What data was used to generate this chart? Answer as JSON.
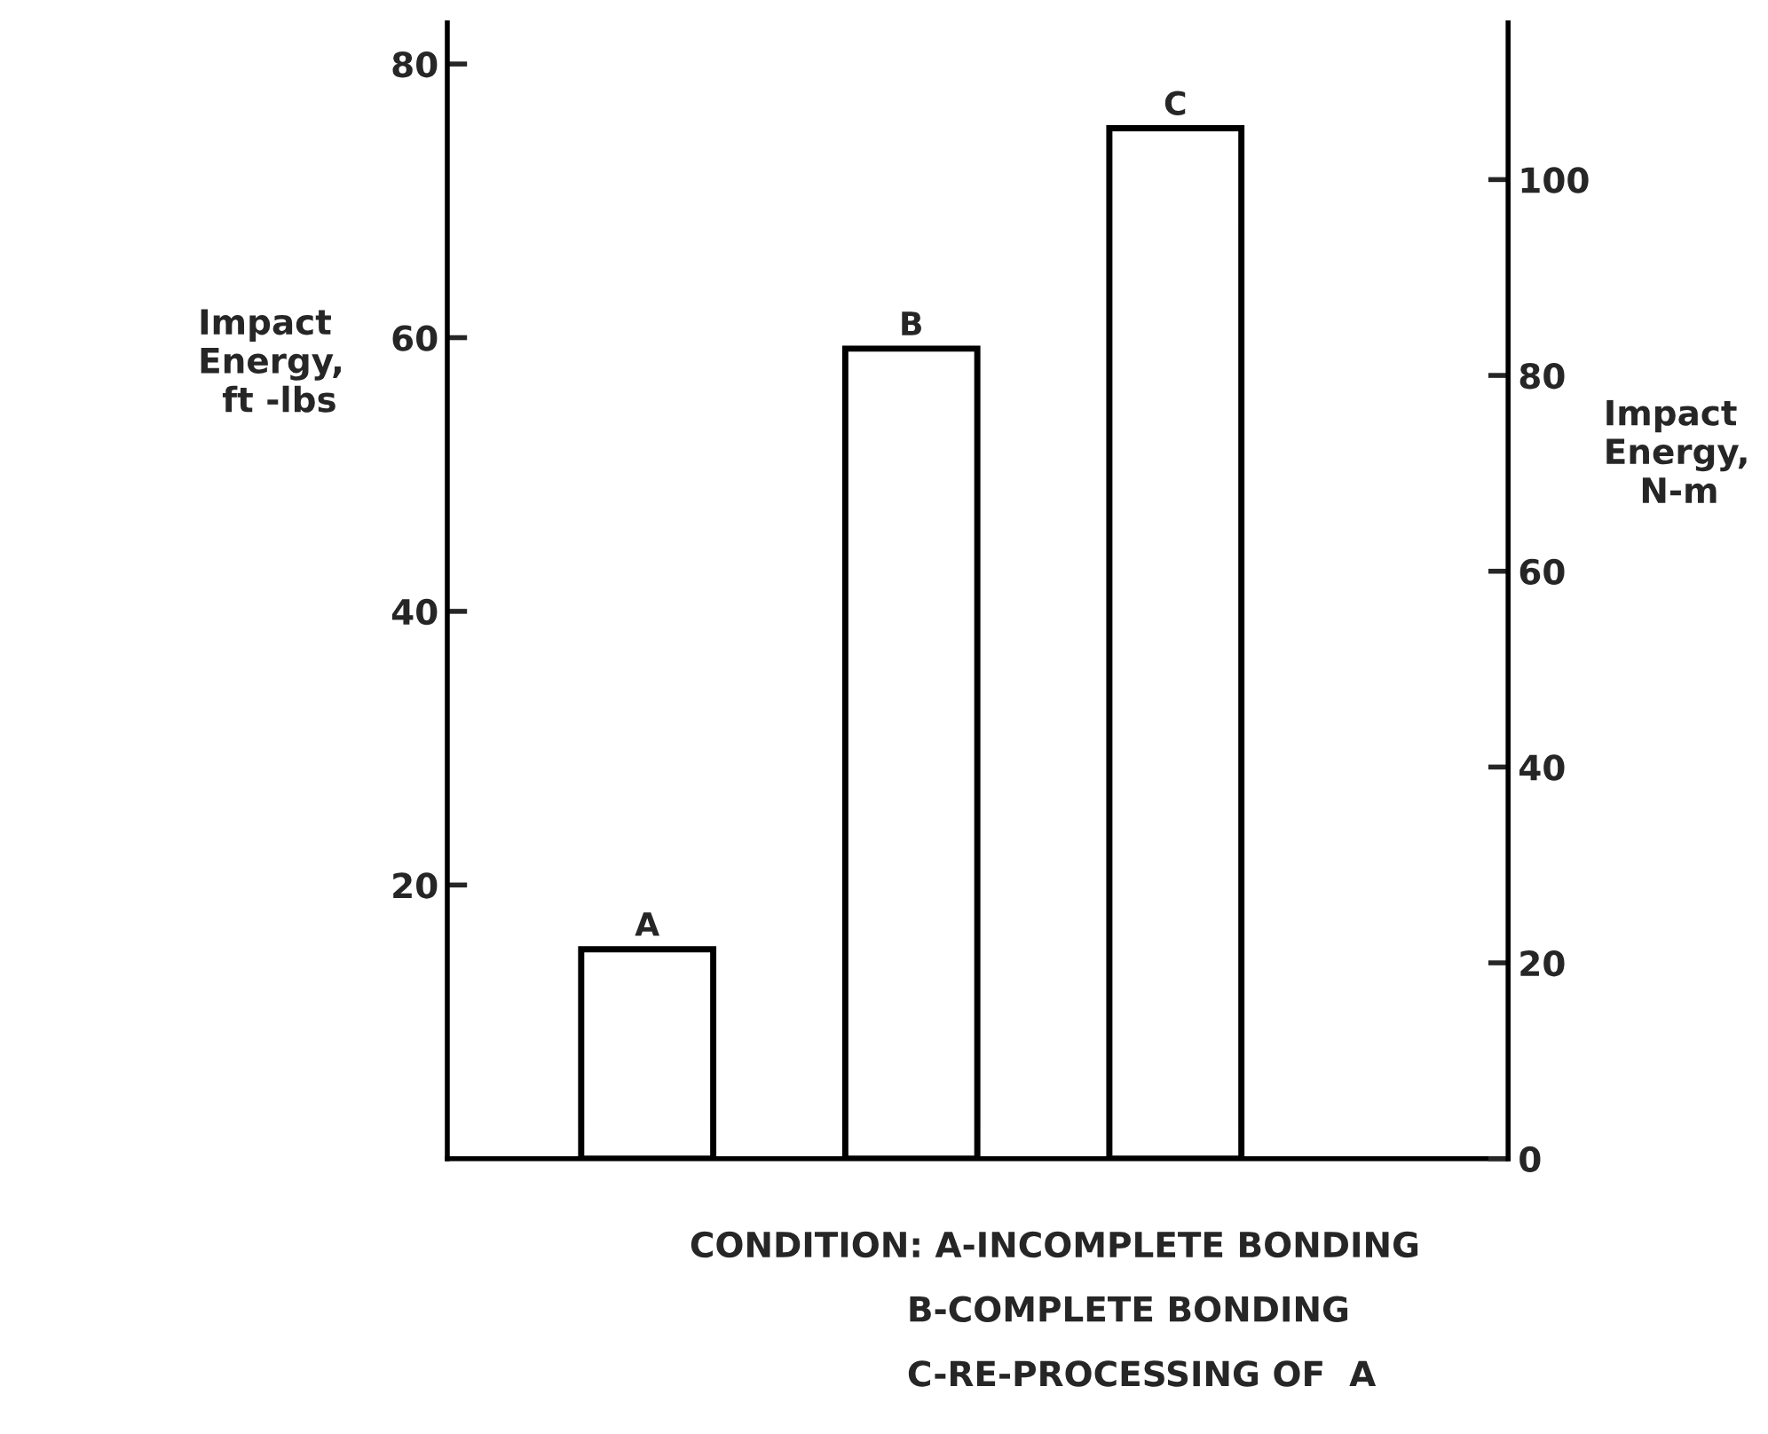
{
  "chart_data": {
    "type": "bar",
    "categories": [
      "A",
      "B",
      "C"
    ],
    "values": [
      15.3,
      59.2,
      75.3
    ],
    "color": "#ffffff",
    "ylabel": "Impact\nEnergy,\n  ft -lbs",
    "y2label": "Impact\nEnergy,\n   N-m",
    "ylim": [
      0,
      83
    ],
    "yticks": [
      20,
      40,
      60,
      80
    ],
    "y2lim": [
      0,
      116
    ],
    "y2ticks": [
      0,
      20,
      40,
      60,
      80,
      100
    ],
    "annotations": [
      "CONDITION: A-INCOMPLETE BONDING",
      "B-COMPLETE BONDING",
      "C-RE-PROCESSING OF  A"
    ],
    "grid": false,
    "legend": false
  }
}
